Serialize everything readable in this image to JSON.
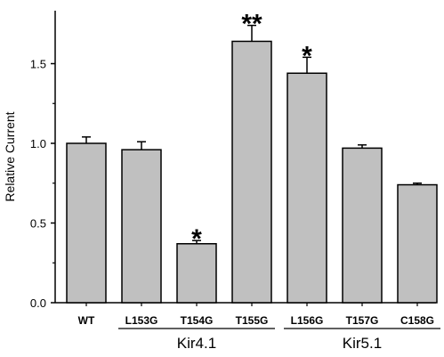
{
  "chart_data": {
    "type": "bar",
    "ylabel": "Relative Current",
    "ylim": [
      0.0,
      1.8
    ],
    "y_ticks": [
      {
        "value": 0.0,
        "label": "0.0"
      },
      {
        "value": 0.5,
        "label": "0.5"
      },
      {
        "value": 1.0,
        "label": "1.0"
      },
      {
        "value": 1.5,
        "label": "1.5"
      }
    ],
    "grid": false,
    "categories": [
      "WT",
      "L153G",
      "T154G",
      "T155G",
      "L156G",
      "T157G",
      "C158G"
    ],
    "values": [
      1.0,
      0.96,
      0.37,
      1.64,
      1.44,
      0.97,
      0.74
    ],
    "errors": [
      0.04,
      0.05,
      0.02,
      0.1,
      0.1,
      0.02,
      0.01
    ],
    "significance": [
      "",
      "",
      "*",
      "**",
      "*",
      "",
      ""
    ],
    "groups": [
      {
        "label": "Kir4.1",
        "categories": [
          "L153G",
          "T154G",
          "T155G"
        ]
      },
      {
        "label": "Kir5.1",
        "categories": [
          "L156G",
          "T157G",
          "C158G"
        ]
      }
    ],
    "colors": {
      "bar_fill": "#c0c0c0",
      "bar_stroke": "#000000",
      "axis": "#000000"
    }
  }
}
